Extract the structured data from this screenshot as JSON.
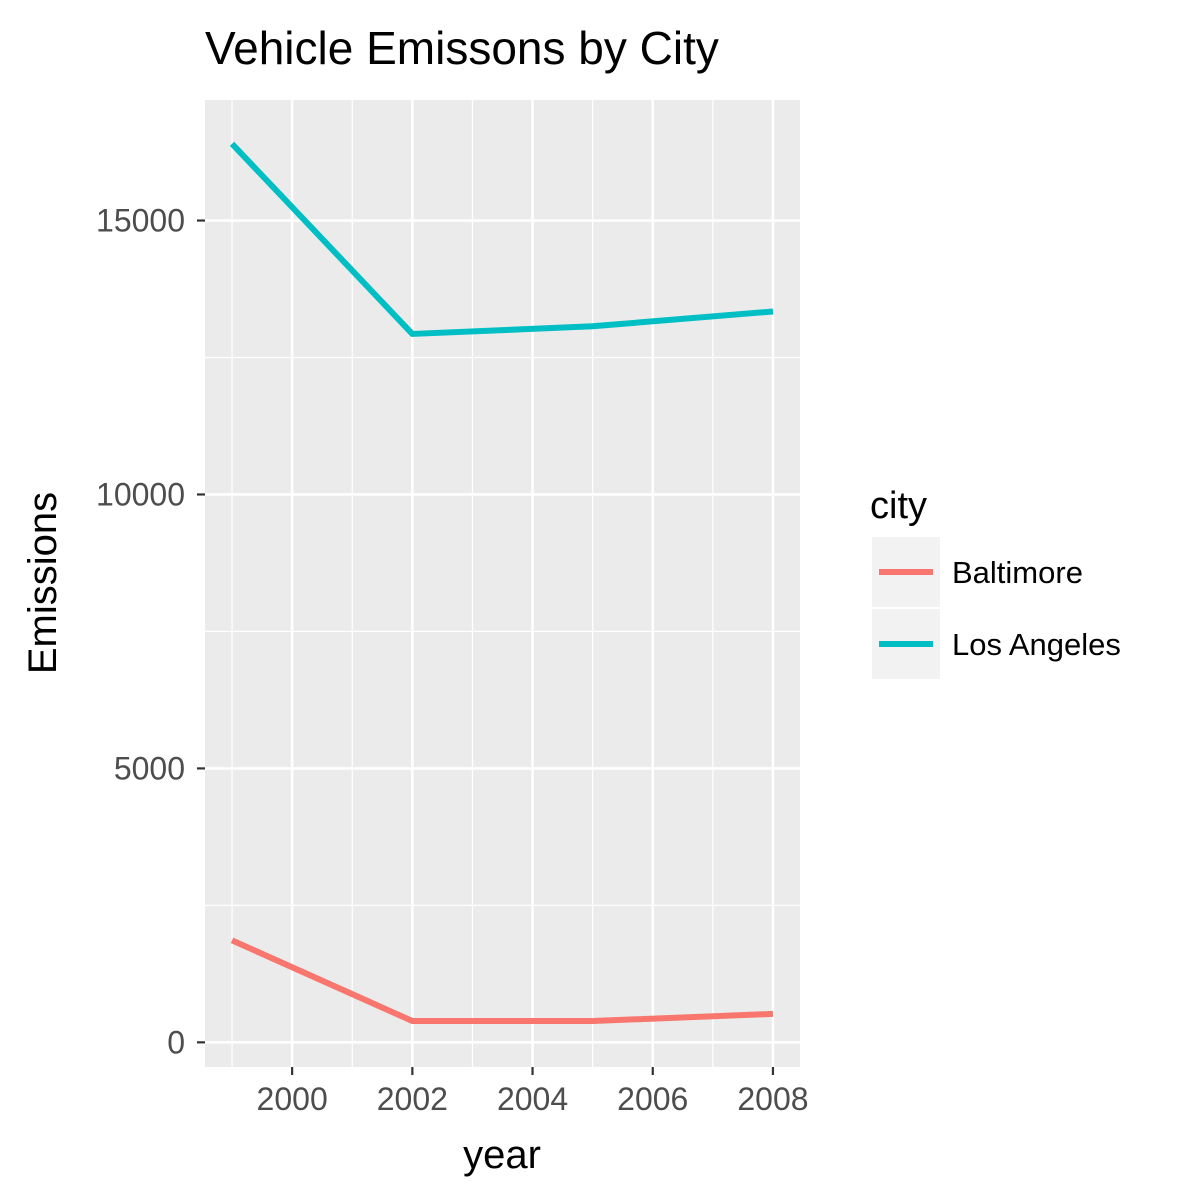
{
  "chart_data": {
    "type": "line",
    "title": "Vehicle Emissons by City",
    "xlabel": "year",
    "ylabel": "Emissions",
    "x": [
      1999,
      2002,
      2005,
      2008
    ],
    "xlim": [
      1998.55,
      2008.45
    ],
    "ylim": [
      -450,
      17200
    ],
    "x_ticks": [
      2000,
      2002,
      2004,
      2006,
      2008
    ],
    "x_tick_labels": [
      "2000",
      "2002",
      "2004",
      "2006",
      "2008"
    ],
    "x_minor_ticks": [
      1999,
      2001,
      2003,
      2005,
      2007
    ],
    "y_ticks": [
      0,
      5000,
      10000,
      15000
    ],
    "y_tick_labels": [
      "0",
      "5000",
      "10000",
      "15000"
    ],
    "y_minor_ticks": [
      2500,
      7500,
      12500
    ],
    "grid": true,
    "legend": {
      "title": "city",
      "position": "right"
    },
    "series": [
      {
        "name": "Baltimore",
        "color": "#F8766D",
        "values": [
          1862,
          389,
          390,
          519
        ]
      },
      {
        "name": "Los Angeles",
        "color": "#00BFC4",
        "values": [
          16401,
          12930,
          13070,
          13340
        ]
      }
    ]
  }
}
